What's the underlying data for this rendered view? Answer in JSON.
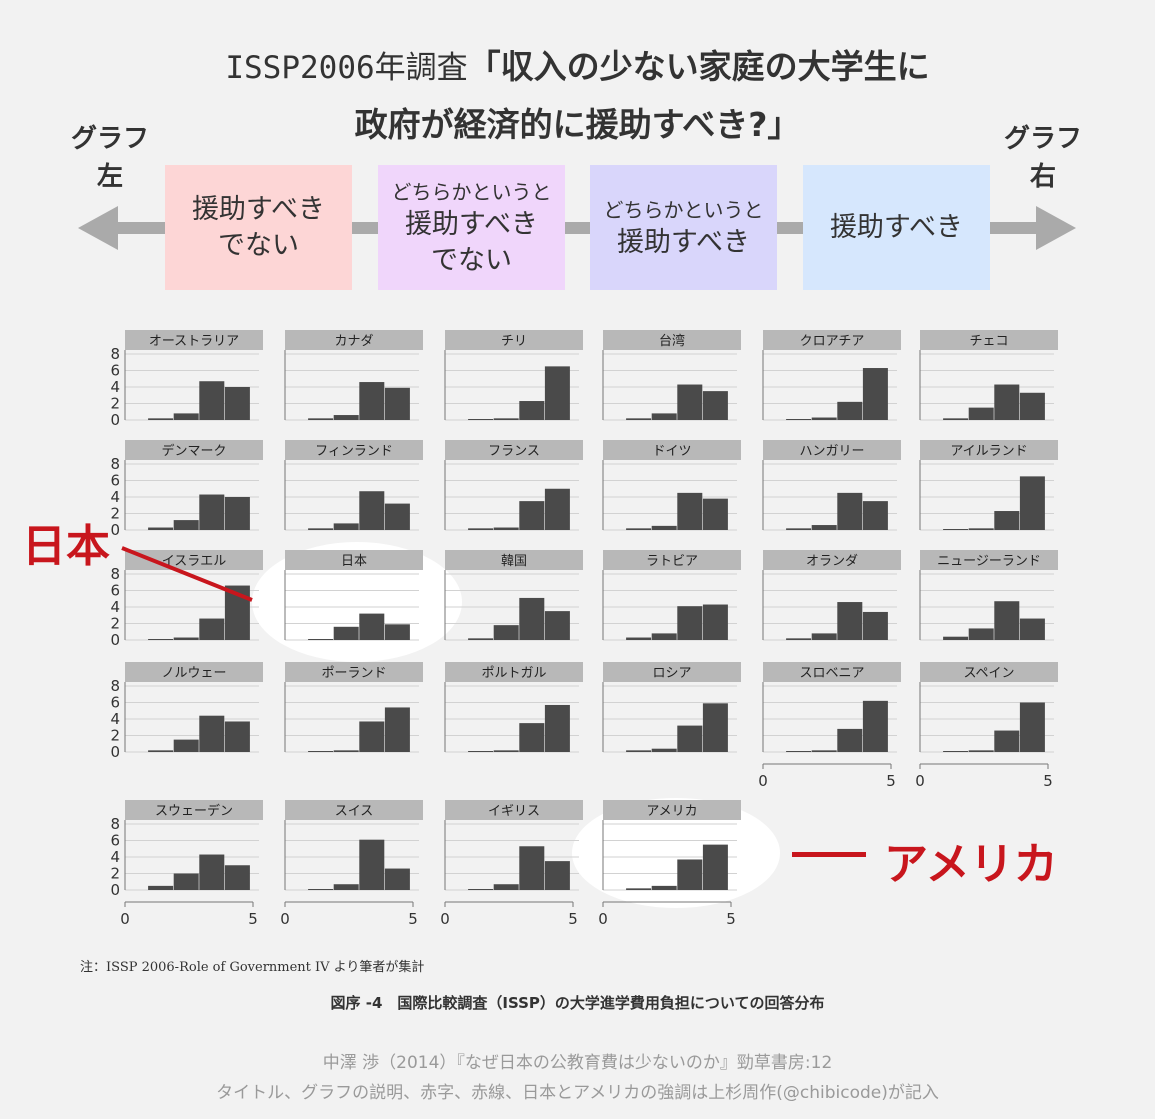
{
  "title": {
    "prefix": "ISSP2006年調査",
    "line1": "「収入の少ない家庭の大学生に",
    "line2": "政府が経済的に援助すべき?」"
  },
  "scale": {
    "left_label": [
      "グラフ",
      "左"
    ],
    "right_label": [
      "グラフ",
      "右"
    ],
    "categories": [
      {
        "small": "",
        "big": [
          "援助すべき",
          "でない"
        ],
        "color": "#fdd6d6"
      },
      {
        "small": "どちらかというと",
        "big": [
          "援助すべき",
          "でない"
        ],
        "color": "#f0d6fb"
      },
      {
        "small": "どちらかというと",
        "big": [
          "援助すべき"
        ],
        "color": "#d9d6fb"
      },
      {
        "small": "",
        "big": [
          "援助すべき"
        ],
        "color": "#d6e7fd"
      }
    ]
  },
  "chart_data": {
    "type": "bar",
    "layout": "small-multiples",
    "categories": [
      1,
      2,
      3,
      4
    ],
    "xlim": [
      0,
      5
    ],
    "ylim": [
      0,
      8
    ],
    "yticks": [
      0,
      2,
      4,
      6,
      8
    ],
    "xticks": [
      0,
      5
    ],
    "panels": [
      {
        "name": "オーストラリア",
        "values": [
          0.2,
          0.8,
          4.7,
          4.0
        ]
      },
      {
        "name": "カナダ",
        "values": [
          0.2,
          0.6,
          4.6,
          3.9
        ]
      },
      {
        "name": "チリ",
        "values": [
          0.1,
          0.2,
          2.3,
          6.5
        ]
      },
      {
        "name": "台湾",
        "values": [
          0.2,
          0.8,
          4.3,
          3.5
        ]
      },
      {
        "name": "クロアチア",
        "values": [
          0.1,
          0.3,
          2.2,
          6.3
        ]
      },
      {
        "name": "チェコ",
        "values": [
          0.2,
          1.5,
          4.3,
          3.3
        ]
      },
      {
        "name": "デンマーク",
        "values": [
          0.3,
          1.2,
          4.3,
          4.0
        ]
      },
      {
        "name": "フィンランド",
        "values": [
          0.2,
          0.8,
          4.7,
          3.2
        ]
      },
      {
        "name": "フランス",
        "values": [
          0.2,
          0.3,
          3.5,
          5.0
        ]
      },
      {
        "name": "ドイツ",
        "values": [
          0.2,
          0.5,
          4.5,
          3.8
        ]
      },
      {
        "name": "ハンガリー",
        "values": [
          0.2,
          0.6,
          4.5,
          3.5
        ]
      },
      {
        "name": "アイルランド",
        "values": [
          0.1,
          0.2,
          2.3,
          6.5
        ]
      },
      {
        "name": "イスラエル",
        "values": [
          0.1,
          0.3,
          2.6,
          6.6
        ]
      },
      {
        "name": "日本",
        "values": [
          0.1,
          1.6,
          3.2,
          1.9
        ]
      },
      {
        "name": "韓国",
        "values": [
          0.2,
          1.8,
          5.1,
          3.5
        ]
      },
      {
        "name": "ラトビア",
        "values": [
          0.3,
          0.8,
          4.1,
          4.3
        ]
      },
      {
        "name": "オランダ",
        "values": [
          0.2,
          0.8,
          4.6,
          3.4
        ]
      },
      {
        "name": "ニュージーランド",
        "values": [
          0.4,
          1.4,
          4.7,
          2.6
        ]
      },
      {
        "name": "ノルウェー",
        "values": [
          0.2,
          1.5,
          4.4,
          3.7
        ]
      },
      {
        "name": "ポーランド",
        "values": [
          0.1,
          0.2,
          3.7,
          5.4
        ]
      },
      {
        "name": "ポルトガル",
        "values": [
          0.1,
          0.2,
          3.5,
          5.7
        ]
      },
      {
        "name": "ロシア",
        "values": [
          0.2,
          0.4,
          3.2,
          5.9
        ]
      },
      {
        "name": "スロベニア",
        "values": [
          0.1,
          0.2,
          2.8,
          6.2
        ]
      },
      {
        "name": "スペイン",
        "values": [
          0.1,
          0.2,
          2.6,
          6.0
        ]
      },
      {
        "name": "スウェーデン",
        "values": [
          0.5,
          2.0,
          4.3,
          3.0
        ]
      },
      {
        "name": "スイス",
        "values": [
          0.1,
          0.7,
          6.1,
          2.6
        ]
      },
      {
        "name": "イギリス",
        "values": [
          0.1,
          0.7,
          5.3,
          3.5
        ]
      },
      {
        "name": "アメリカ",
        "values": [
          0.2,
          0.5,
          3.7,
          5.5
        ]
      }
    ]
  },
  "annotations": {
    "japan_label": "日本",
    "usa_label": "アメリカ",
    "accent_color": "#c8161d"
  },
  "note": "注：ISSP 2006-Role of Government IV より筆者が集計",
  "caption": "図序 -4　国際比較調査（ISSP）の大学進学費用負担についての回答分布",
  "credit": {
    "line1": "中澤 渉（2014）『なぜ日本の公教育費は少ないのか』勁草書房:12",
    "line2": "タイトル、グラフの説明、赤字、赤線、日本とアメリカの強調は上杉周作(@chibicode)が記入"
  }
}
